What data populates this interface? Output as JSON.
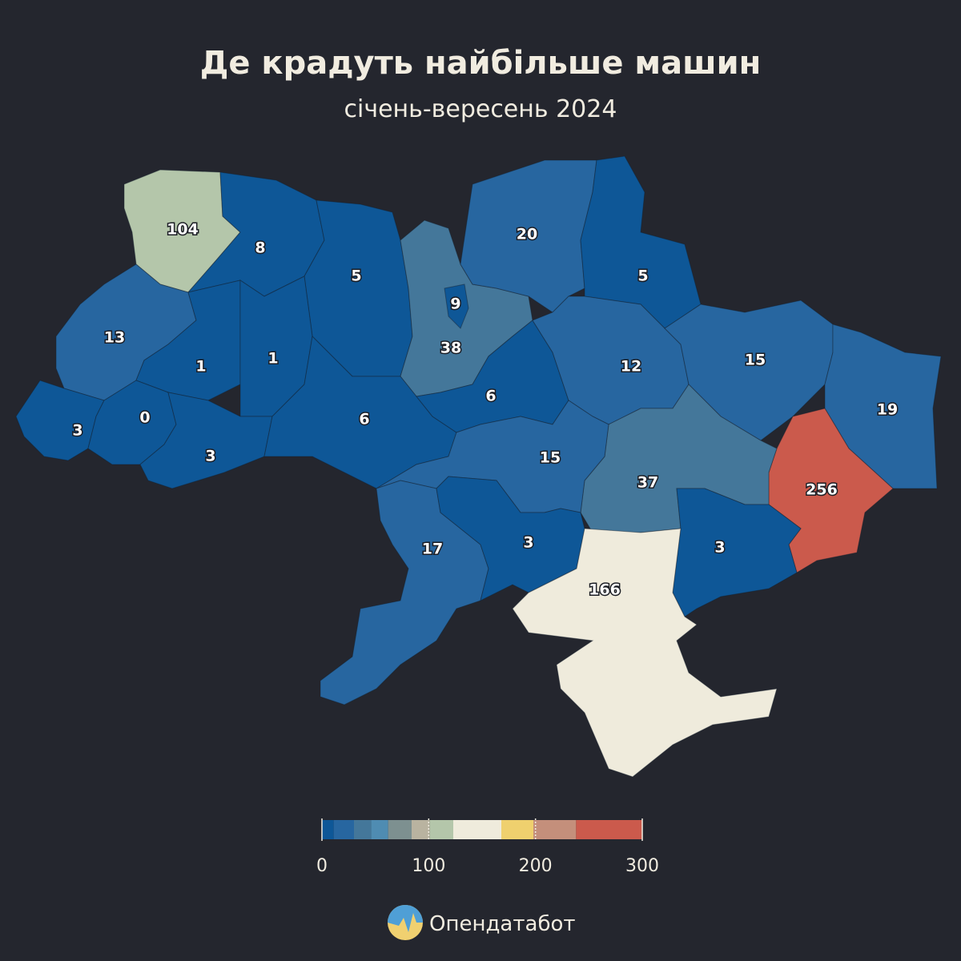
{
  "title": "Де крадуть найбільше машин",
  "subtitle": "січень-вересень 2024",
  "regions": [
    104,
    8,
    5,
    38,
    9,
    20,
    5,
    13,
    1,
    1,
    3,
    0,
    3,
    6,
    6,
    12,
    15,
    19,
    256,
    37,
    15,
    17,
    3,
    3,
    166
  ],
  "legend": {
    "bounds": [
      0,
      11,
      30,
      46,
      62,
      84,
      101,
      123,
      168,
      198,
      238,
      300
    ],
    "colors": [
      "#0e5797",
      "#2766a0",
      "#44779a",
      "#4f8cb2",
      "#7d9090",
      "#b9b3a0",
      "#b4c6aa",
      "#efebdc",
      "#efd06e",
      "#c48f7b",
      "#cb5a4c"
    ],
    "ticks": [
      0,
      100,
      200,
      300
    ]
  },
  "logo": "Опендатабот"
}
